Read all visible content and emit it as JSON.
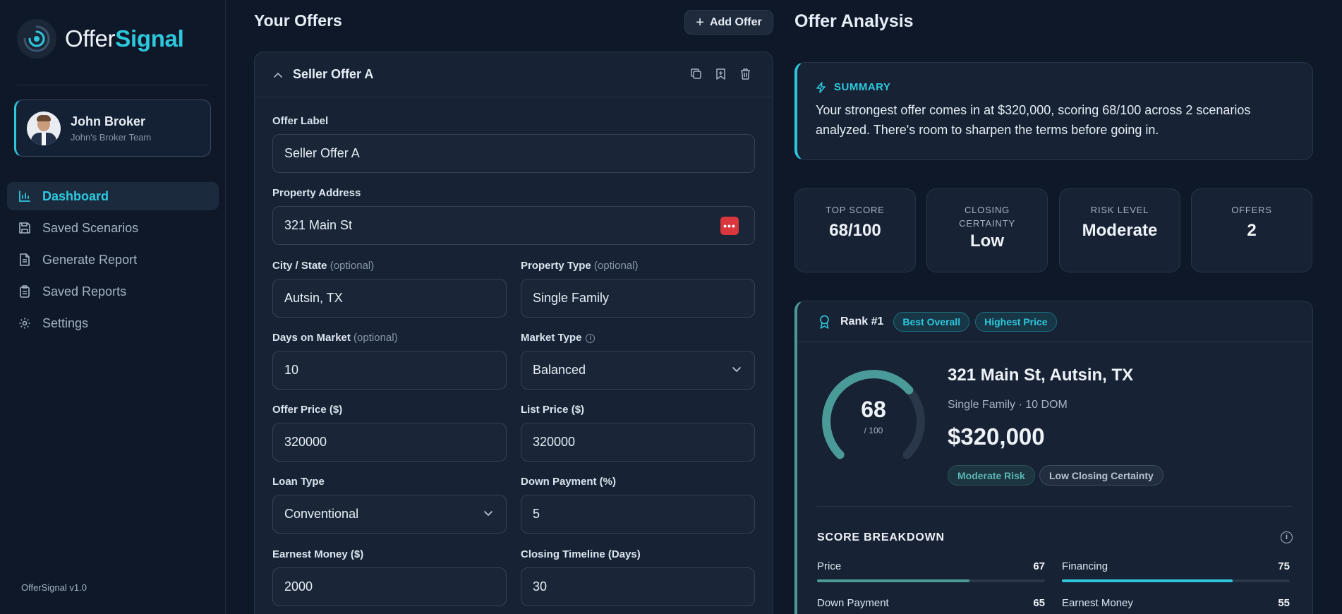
{
  "app": {
    "logo_part1": "Offer",
    "logo_part2": "Signal",
    "version": "OfferSignal v1.0",
    "accent_color": "#2ec8dd"
  },
  "profile": {
    "name": "John Broker",
    "team": "John's Broker Team"
  },
  "nav": [
    {
      "label": "Dashboard",
      "icon": "bar-chart-icon",
      "active": true
    },
    {
      "label": "Saved Scenarios",
      "icon": "save-icon",
      "active": false
    },
    {
      "label": "Generate Report",
      "icon": "document-icon",
      "active": false
    },
    {
      "label": "Saved Reports",
      "icon": "clipboard-icon",
      "active": false
    },
    {
      "label": "Settings",
      "icon": "gear-icon",
      "active": false
    }
  ],
  "offers": {
    "title": "Your Offers",
    "add_label": "Add Offer",
    "card": {
      "name": "Seller Offer A",
      "fields": {
        "offer_label": {
          "label": "Offer Label",
          "value": "Seller Offer A"
        },
        "address": {
          "label": "Property Address",
          "value": "321 Main St"
        },
        "city_state": {
          "label": "City / State",
          "optional": "(optional)",
          "value": "Autsin, TX"
        },
        "property_type": {
          "label": "Property Type",
          "optional": "(optional)",
          "value": "Single Family"
        },
        "days_on_market": {
          "label": "Days on Market",
          "optional": "(optional)",
          "value": "10"
        },
        "market_type": {
          "label": "Market Type",
          "value": "Balanced"
        },
        "offer_price": {
          "label": "Offer Price ($)",
          "value": "320000"
        },
        "list_price": {
          "label": "List Price ($)",
          "value": "320000"
        },
        "loan_type": {
          "label": "Loan Type",
          "value": "Conventional"
        },
        "down_payment": {
          "label": "Down Payment (%)",
          "value": "5"
        },
        "earnest_money": {
          "label": "Earnest Money ($)",
          "value": "2000"
        },
        "closing_timeline": {
          "label": "Closing Timeline (Days)",
          "value": "30"
        }
      }
    }
  },
  "analysis": {
    "title": "Offer Analysis",
    "summary_title": "SUMMARY",
    "summary_text": "Your strongest offer comes in at $320,000, scoring 68/100 across 2 scenarios analyzed. There's room to sharpen the terms before going in.",
    "stats": [
      {
        "label": "TOP SCORE",
        "value": "68/100"
      },
      {
        "label": "CLOSING CERTAINTY",
        "value": "Low"
      },
      {
        "label": "RISK LEVEL",
        "value": "Moderate"
      },
      {
        "label": "OFFERS",
        "value": "2"
      }
    ],
    "rank": {
      "label": "Rank #1",
      "badges": [
        "Best Overall",
        "Highest Price"
      ],
      "score": 68,
      "score_max": "/ 100",
      "score_text": "68",
      "property": "321 Main St, Autsin, TX",
      "meta": "Single Family · 10 DOM",
      "price": "$320,000",
      "tags": [
        "Moderate Risk",
        "Low Closing Certainty"
      ],
      "breakdown_title": "SCORE BREAKDOWN",
      "breakdown": [
        {
          "label": "Price",
          "value": 67,
          "color": "#4a9a99"
        },
        {
          "label": "Financing",
          "value": 75,
          "color": "#2ec8dd"
        },
        {
          "label": "Down Payment",
          "value": 65,
          "color": "#4a9a99"
        },
        {
          "label": "Earnest Money",
          "value": 55,
          "color": "#4a9a99"
        }
      ]
    }
  }
}
